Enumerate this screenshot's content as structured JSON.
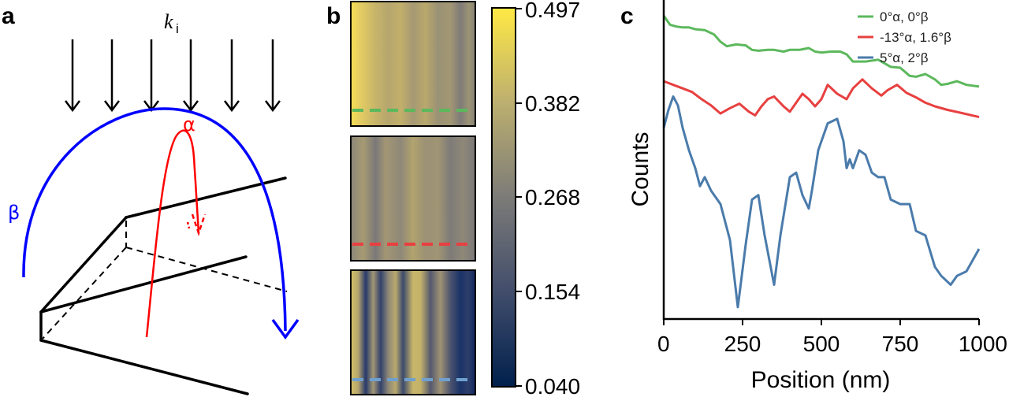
{
  "panels": {
    "a": {
      "letter": "a",
      "wavevector_symbol": "k",
      "wavevector_subscript": "i",
      "alpha_label": "α",
      "beta_label": "β",
      "alpha_color": "#ff0000",
      "beta_color": "#0000ff"
    },
    "b": {
      "letter": "b",
      "colorbar_ticks": [
        "0.497",
        "0.382",
        "0.268",
        "0.154",
        "0.040"
      ],
      "colormap": "cividis"
    },
    "c": {
      "letter": "c"
    }
  },
  "chart_data": {
    "type": "line",
    "xlabel": "Position (nm)",
    "ylabel": "Counts",
    "xlim": [
      0,
      1000
    ],
    "xticks": [
      "0",
      "250",
      "500",
      "750",
      "1000"
    ],
    "legend_placement": "top-right",
    "series": [
      {
        "name": "0°α, 0°β",
        "color": "#5cb85c",
        "x": [
          0,
          20,
          40,
          60,
          80,
          100,
          130,
          160,
          180,
          200,
          230,
          260,
          280,
          300,
          330,
          350,
          380,
          400,
          430,
          460,
          480,
          500,
          530,
          560,
          580,
          600,
          640,
          680,
          700,
          720,
          750,
          780,
          800,
          830,
          860,
          880,
          900,
          930,
          960,
          1000
        ],
        "y": [
          0.95,
          0.85,
          0.83,
          0.82,
          0.82,
          0.8,
          0.79,
          0.74,
          0.66,
          0.61,
          0.63,
          0.62,
          0.57,
          0.56,
          0.57,
          0.57,
          0.55,
          0.57,
          0.57,
          0.59,
          0.55,
          0.54,
          0.55,
          0.55,
          0.52,
          0.44,
          0.44,
          0.46,
          0.42,
          0.38,
          0.37,
          0.28,
          0.27,
          0.3,
          0.24,
          0.18,
          0.19,
          0.22,
          0.18,
          0.16
        ]
      },
      {
        "name": "-13°α, 1.6°β",
        "color": "#e84040",
        "x": [
          0,
          30,
          60,
          90,
          120,
          150,
          180,
          210,
          240,
          270,
          290,
          310,
          330,
          350,
          380,
          400,
          420,
          440,
          460,
          480,
          500,
          520,
          550,
          580,
          600,
          630,
          660,
          690,
          710,
          740,
          770,
          800,
          830,
          860,
          900,
          940,
          1000
        ],
        "y": [
          0.22,
          0.18,
          0.14,
          0.1,
          0.02,
          -0.05,
          -0.14,
          -0.08,
          -0.03,
          -0.12,
          -0.16,
          -0.06,
          0.02,
          0.05,
          -0.06,
          -0.12,
          -0.02,
          0.08,
          0.02,
          -0.06,
          0.02,
          0.18,
          0.08,
          0.02,
          0.14,
          0.24,
          0.14,
          0.06,
          0.12,
          0.18,
          0.09,
          0.04,
          -0.02,
          -0.06,
          -0.1,
          -0.13,
          -0.18
        ]
      },
      {
        "name": "5°α, 2°β",
        "color": "#4a7bab",
        "x": [
          0,
          15,
          30,
          45,
          60,
          80,
          100,
          115,
          130,
          150,
          180,
          210,
          235,
          260,
          280,
          300,
          320,
          350,
          370,
          400,
          420,
          440,
          460,
          470,
          490,
          520,
          550,
          570,
          580,
          590,
          600,
          620,
          640,
          660,
          680,
          700,
          720,
          750,
          780,
          800,
          830,
          860,
          880,
          910,
          930,
          960,
          1000
        ],
        "y": [
          -0.3,
          -0.1,
          0.05,
          -0.05,
          -0.3,
          -0.55,
          -0.75,
          -0.95,
          -0.85,
          -1.0,
          -1.15,
          -1.55,
          -2.3,
          -1.6,
          -1.1,
          -1.05,
          -1.5,
          -2.05,
          -1.5,
          -0.85,
          -0.8,
          -1.05,
          -1.2,
          -1.0,
          -0.55,
          -0.25,
          -0.2,
          -0.45,
          -0.75,
          -0.65,
          -0.75,
          -0.55,
          -0.6,
          -0.8,
          -0.85,
          -0.85,
          -1.1,
          -1.15,
          -1.15,
          -1.45,
          -1.5,
          -1.85,
          -1.95,
          -2.05,
          -1.95,
          -1.9,
          -1.65
        ]
      }
    ]
  }
}
